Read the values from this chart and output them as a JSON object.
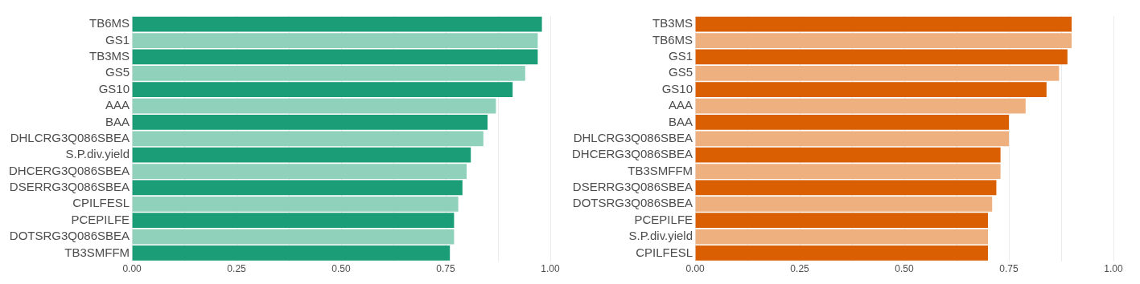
{
  "chart_data": [
    {
      "type": "bar",
      "orientation": "horizontal",
      "grid": "x",
      "xlim": [
        0,
        1
      ],
      "xticks": [
        {
          "value": 0,
          "label": "0.00"
        },
        {
          "value": 0.125,
          "label": null
        },
        {
          "value": 0.25,
          "label": "0.25"
        },
        {
          "value": 0.375,
          "label": null
        },
        {
          "value": 0.5,
          "label": "0.50"
        },
        {
          "value": 0.625,
          "label": null
        },
        {
          "value": 0.75,
          "label": "0.75"
        },
        {
          "value": 0.875,
          "label": null
        },
        {
          "value": 1,
          "label": "1.00"
        }
      ],
      "categories": [
        "TB6MS",
        "GS1",
        "TB3MS",
        "GS5",
        "GS10",
        "AAA",
        "BAA",
        "DHLCRG3Q086SBEA",
        "S.P.div.yield",
        "DHCERG3Q086SBEA",
        "DSERRG3Q086SBEA",
        "CPILFESL",
        "PCEPILFE",
        "DOTSRG3Q086SBEA",
        "TB3SMFFM"
      ],
      "values": [
        0.98,
        0.97,
        0.97,
        0.94,
        0.91,
        0.87,
        0.85,
        0.84,
        0.81,
        0.8,
        0.79,
        0.78,
        0.77,
        0.77,
        0.76
      ],
      "colors": [
        "#1b9e77",
        "#8fd1bb",
        "#1b9e77",
        "#8fd1bb",
        "#1b9e77",
        "#8fd1bb",
        "#1b9e77",
        "#8fd1bb",
        "#1b9e77",
        "#8fd1bb",
        "#1b9e77",
        "#8fd1bb",
        "#1b9e77",
        "#8fd1bb",
        "#1b9e77"
      ]
    },
    {
      "type": "bar",
      "orientation": "horizontal",
      "grid": "x",
      "xlim": [
        0,
        1
      ],
      "xticks": [
        {
          "value": 0,
          "label": "0.00"
        },
        {
          "value": 0.125,
          "label": null
        },
        {
          "value": 0.25,
          "label": "0.25"
        },
        {
          "value": 0.375,
          "label": null
        },
        {
          "value": 0.5,
          "label": "0.50"
        },
        {
          "value": 0.625,
          "label": null
        },
        {
          "value": 0.75,
          "label": "0.75"
        },
        {
          "value": 0.875,
          "label": null
        },
        {
          "value": 1,
          "label": "1.00"
        }
      ],
      "categories": [
        "TB3MS",
        "TB6MS",
        "GS1",
        "GS5",
        "GS10",
        "AAA",
        "BAA",
        "DHLCRG3Q086SBEA",
        "DHCERG3Q086SBEA",
        "TB3SMFFM",
        "DSERRG3Q086SBEA",
        "DOTSRG3Q086SBEA",
        "PCEPILFE",
        "S.P.div.yield",
        "CPILFESL"
      ],
      "values": [
        0.9,
        0.9,
        0.89,
        0.87,
        0.84,
        0.79,
        0.75,
        0.75,
        0.73,
        0.73,
        0.72,
        0.71,
        0.7,
        0.7,
        0.7
      ],
      "colors": [
        "#d95f02",
        "#efb07f",
        "#d95f02",
        "#efb07f",
        "#d95f02",
        "#efb07f",
        "#d95f02",
        "#efb07f",
        "#d95f02",
        "#efb07f",
        "#d95f02",
        "#efb07f",
        "#d95f02",
        "#efb07f",
        "#d95f02"
      ]
    }
  ]
}
